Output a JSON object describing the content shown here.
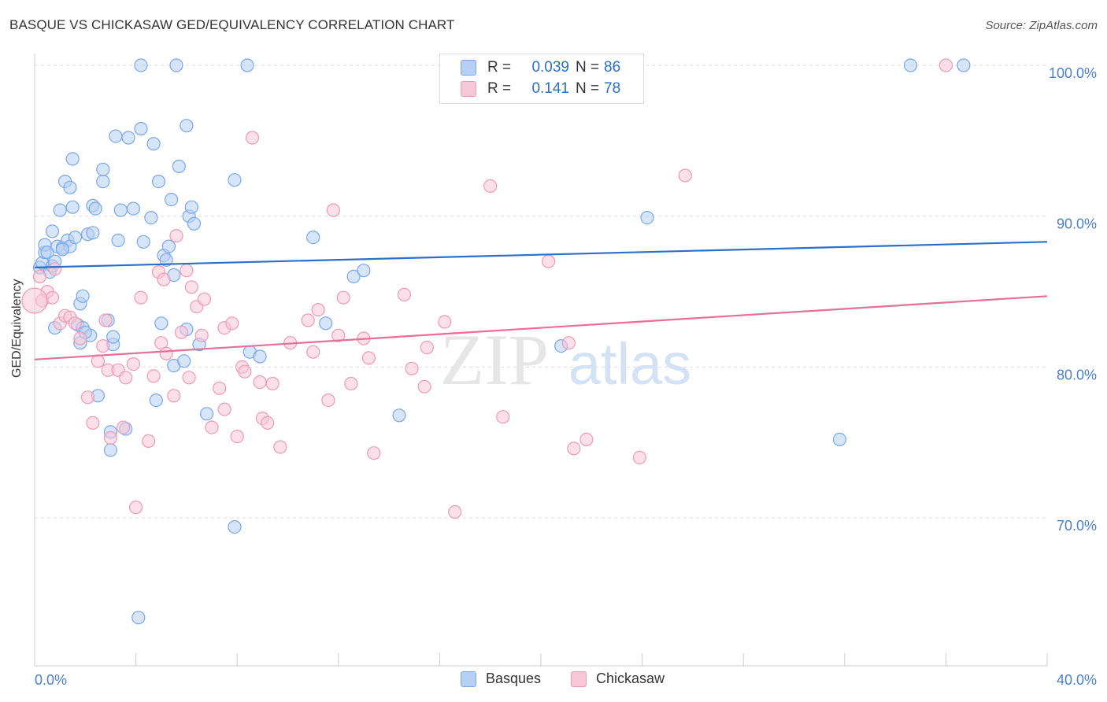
{
  "title": "BASQUE VS CHICKASAW GED/EQUIVALENCY CORRELATION CHART",
  "source": "Source: ZipAtlas.com",
  "watermark": {
    "zip": "ZIP",
    "atlas": "atlas"
  },
  "legend": {
    "rows": [
      {
        "r_label": "R =",
        "r_value": "0.039",
        "n_label": "N =",
        "n_value": "86",
        "color": "#7aa7e8"
      },
      {
        "r_label": "R =",
        "r_value": "0.141",
        "n_label": "N =",
        "n_value": "78",
        "color": "#f0a0bc"
      }
    ]
  },
  "bottom_legend": {
    "basques": "Basques",
    "chickasaw": "Chickasaw"
  },
  "colors": {
    "blue_fill": "#b7cff3",
    "blue_stroke": "#7aa7e8",
    "blue_line": "#2a6fcc",
    "pink_fill": "#f7c7d7",
    "pink_stroke": "#ec9ab6",
    "pink_line": "#e86d98",
    "tick_text": "#4a7fd0",
    "grid": "#dddddd"
  },
  "chart_data": {
    "type": "scatter",
    "title": "BASQUE VS CHICKASAW GED/EQUIVALENCY CORRELATION CHART",
    "xlabel": "",
    "ylabel": "GED/Equivalency",
    "xlim": [
      0,
      40
    ],
    "ylim": [
      60.2,
      101.2
    ],
    "x_tick_labels": [
      {
        "value": 0,
        "label": "0.0%"
      },
      {
        "value": 40,
        "label": "40.0%"
      }
    ],
    "y_tick_labels": [
      {
        "value": 100,
        "label": "100.0%"
      },
      {
        "value": 90,
        "label": "90.0%"
      },
      {
        "value": 80,
        "label": "80.0%"
      },
      {
        "value": 70,
        "label": "70.0%"
      }
    ],
    "series": [
      {
        "name": "Basques",
        "regression": {
          "x": [
            0,
            40
          ],
          "y": [
            86.6,
            88.3
          ]
        },
        "points": [
          [
            0.2,
            86.6
          ],
          [
            0.3,
            86.9
          ],
          [
            0.4,
            87.6
          ],
          [
            0.4,
            88.1
          ],
          [
            0.5,
            87.6
          ],
          [
            0.6,
            86.3
          ],
          [
            0.7,
            86.7
          ],
          [
            0.8,
            87.0
          ],
          [
            0.7,
            89.0
          ],
          [
            0.8,
            82.6
          ],
          [
            0.9,
            88.0
          ],
          [
            1.0,
            90.4
          ],
          [
            1.1,
            87.9
          ],
          [
            1.2,
            92.3
          ],
          [
            1.3,
            88.4
          ],
          [
            1.4,
            91.9
          ],
          [
            1.4,
            88.0
          ],
          [
            1.5,
            93.8
          ],
          [
            1.5,
            90.6
          ],
          [
            1.6,
            88.6
          ],
          [
            1.7,
            82.8
          ],
          [
            1.8,
            81.6
          ],
          [
            1.8,
            84.2
          ],
          [
            1.9,
            84.7
          ],
          [
            1.9,
            82.6
          ],
          [
            2.1,
            88.8
          ],
          [
            2.2,
            82.1
          ],
          [
            2.3,
            88.9
          ],
          [
            2.3,
            90.7
          ],
          [
            2.4,
            90.5
          ],
          [
            2.5,
            78.1
          ],
          [
            2.7,
            93.1
          ],
          [
            2.7,
            92.3
          ],
          [
            2.9,
            83.1
          ],
          [
            3.0,
            74.5
          ],
          [
            3.0,
            75.7
          ],
          [
            3.1,
            81.5
          ],
          [
            3.2,
            95.3
          ],
          [
            3.3,
            88.4
          ],
          [
            3.4,
            90.4
          ],
          [
            3.6,
            75.9
          ],
          [
            3.7,
            95.2
          ],
          [
            3.9,
            90.5
          ],
          [
            4.1,
            63.4
          ],
          [
            4.2,
            95.8
          ],
          [
            4.2,
            100.0
          ],
          [
            4.3,
            88.3
          ],
          [
            4.6,
            89.9
          ],
          [
            4.7,
            94.8
          ],
          [
            4.8,
            77.8
          ],
          [
            4.9,
            92.3
          ],
          [
            5.0,
            82.9
          ],
          [
            5.1,
            87.4
          ],
          [
            5.2,
            87.1
          ],
          [
            5.3,
            88.0
          ],
          [
            5.4,
            91.1
          ],
          [
            5.5,
            80.1
          ],
          [
            5.6,
            100.0
          ],
          [
            5.7,
            93.3
          ],
          [
            5.9,
            80.4
          ],
          [
            6.0,
            82.5
          ],
          [
            6.0,
            96.0
          ],
          [
            6.1,
            90.0
          ],
          [
            6.2,
            90.6
          ],
          [
            6.3,
            89.5
          ],
          [
            6.5,
            81.5
          ],
          [
            6.8,
            76.9
          ],
          [
            7.9,
            69.4
          ],
          [
            7.9,
            92.4
          ],
          [
            8.4,
            100.0
          ],
          [
            8.5,
            81.0
          ],
          [
            8.9,
            80.7
          ],
          [
            11.0,
            88.6
          ],
          [
            11.5,
            82.9
          ],
          [
            12.6,
            86.0
          ],
          [
            13.0,
            86.4
          ],
          [
            14.4,
            76.8
          ],
          [
            20.8,
            81.4
          ],
          [
            24.2,
            89.9
          ],
          [
            31.8,
            75.2
          ],
          [
            34.6,
            100.0
          ],
          [
            36.7,
            100.0
          ],
          [
            3.1,
            82.0
          ],
          [
            5.5,
            86.1
          ],
          [
            2.0,
            82.3
          ],
          [
            1.1,
            87.8
          ]
        ]
      },
      {
        "name": "Chickasaw",
        "regression": {
          "x": [
            0,
            40
          ],
          "y": [
            80.5,
            84.7
          ]
        },
        "points": [
          [
            0.2,
            86.0
          ],
          [
            0.3,
            84.4
          ],
          [
            0.5,
            85.0
          ],
          [
            0.7,
            84.6
          ],
          [
            0.8,
            86.5
          ],
          [
            1.0,
            82.9
          ],
          [
            1.2,
            83.4
          ],
          [
            1.4,
            83.3
          ],
          [
            1.6,
            82.9
          ],
          [
            1.8,
            81.9
          ],
          [
            2.1,
            78.0
          ],
          [
            2.3,
            76.3
          ],
          [
            2.5,
            80.4
          ],
          [
            2.7,
            81.4
          ],
          [
            2.8,
            83.1
          ],
          [
            2.9,
            79.8
          ],
          [
            3.0,
            75.3
          ],
          [
            3.3,
            79.8
          ],
          [
            3.5,
            76.0
          ],
          [
            3.6,
            79.3
          ],
          [
            3.9,
            80.2
          ],
          [
            4.0,
            70.7
          ],
          [
            4.2,
            84.6
          ],
          [
            4.5,
            75.1
          ],
          [
            4.7,
            79.4
          ],
          [
            4.9,
            86.3
          ],
          [
            5.0,
            81.6
          ],
          [
            5.1,
            85.8
          ],
          [
            5.2,
            80.9
          ],
          [
            5.5,
            78.1
          ],
          [
            5.6,
            88.7
          ],
          [
            5.8,
            82.3
          ],
          [
            6.0,
            86.4
          ],
          [
            6.1,
            79.3
          ],
          [
            6.2,
            85.3
          ],
          [
            6.4,
            84.0
          ],
          [
            6.6,
            82.1
          ],
          [
            6.7,
            84.5
          ],
          [
            7.0,
            76.0
          ],
          [
            7.3,
            78.6
          ],
          [
            7.5,
            82.6
          ],
          [
            7.5,
            77.2
          ],
          [
            7.8,
            82.9
          ],
          [
            8.0,
            75.4
          ],
          [
            8.2,
            80.0
          ],
          [
            8.3,
            79.7
          ],
          [
            8.6,
            95.2
          ],
          [
            8.9,
            79.0
          ],
          [
            9.0,
            76.6
          ],
          [
            9.2,
            76.3
          ],
          [
            9.4,
            78.9
          ],
          [
            9.7,
            74.7
          ],
          [
            10.1,
            81.6
          ],
          [
            10.8,
            83.1
          ],
          [
            11.0,
            81.0
          ],
          [
            11.2,
            83.8
          ],
          [
            11.6,
            77.8
          ],
          [
            11.8,
            90.4
          ],
          [
            12.0,
            82.1
          ],
          [
            12.2,
            84.6
          ],
          [
            12.5,
            78.9
          ],
          [
            13.0,
            81.9
          ],
          [
            13.2,
            80.6
          ],
          [
            13.4,
            74.3
          ],
          [
            14.6,
            84.8
          ],
          [
            14.9,
            79.9
          ],
          [
            15.4,
            78.7
          ],
          [
            15.5,
            81.3
          ],
          [
            16.2,
            83.0
          ],
          [
            16.6,
            70.4
          ],
          [
            18.0,
            92.0
          ],
          [
            18.5,
            76.7
          ],
          [
            20.3,
            87.0
          ],
          [
            21.1,
            81.6
          ],
          [
            21.3,
            74.6
          ],
          [
            21.8,
            75.2
          ],
          [
            23.9,
            74.0
          ],
          [
            25.7,
            92.7
          ]
        ],
        "extra_points": [
          [
            36.0,
            100.0
          ],
          [
            0.0,
            84.4
          ]
        ]
      }
    ]
  }
}
